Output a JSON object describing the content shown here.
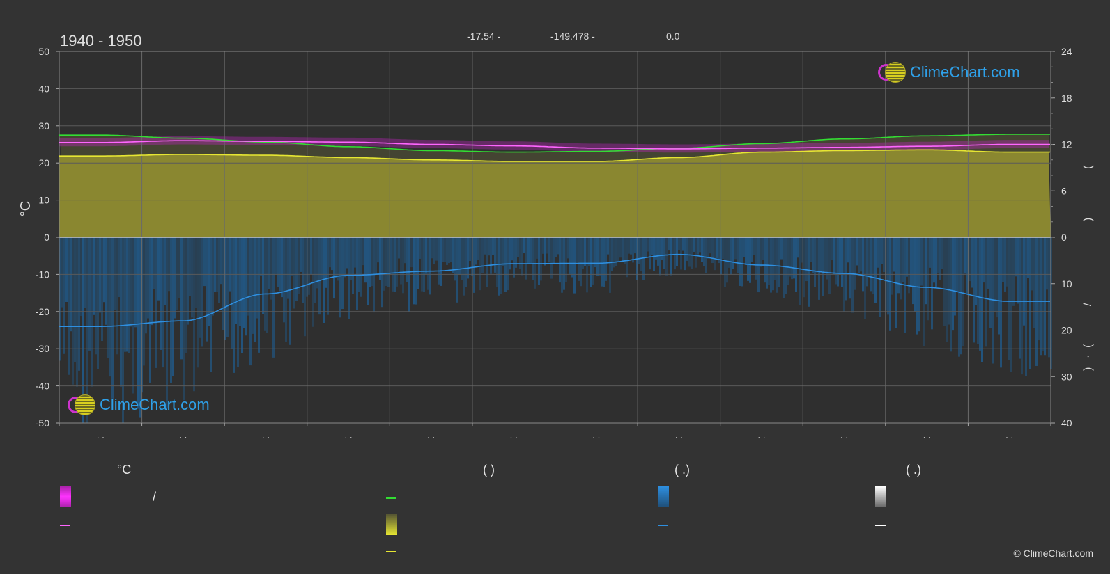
{
  "header": {
    "period": "1940 - 1950",
    "lat": "-17.54 -",
    "lon": "-149.478 -",
    "elev": "0.0"
  },
  "logo_text": "ClimeChart.com",
  "copyright": "© ClimeChart.com",
  "legend": {
    "col1_head": "°C",
    "col2_head": "(           )",
    "col3_head": "(   .)",
    "col4_head": "(   .)",
    "slash": "/"
  },
  "colors": {
    "background": "#333333",
    "sunshine_fill": "#8f8c30",
    "daylight_line": "#33dd33",
    "sunshine_line": "#e6e633",
    "temp_line": "#ff66ff",
    "temp_band": "#cc22cc",
    "precip_bars": "#1f5f94",
    "precip_line": "#2e8fe0",
    "snow_line": "#ffffff"
  },
  "chart_data": {
    "type": "line",
    "months": 12,
    "left_axis": {
      "label": "°C",
      "ticks": [
        50,
        40,
        30,
        20,
        10,
        0,
        -10,
        -20,
        -30,
        -40,
        -50
      ],
      "range": [
        -50,
        50
      ]
    },
    "right_axis_top": {
      "ticks": [
        24,
        18,
        12,
        6,
        0
      ],
      "range": [
        0,
        24
      ],
      "label_glyphs": [
        "(",
        ")"
      ]
    },
    "right_axis_bottom": {
      "ticks": [
        0,
        10,
        20,
        30,
        40
      ],
      "range": [
        0,
        40
      ],
      "label_glyphs": [
        "/",
        "(",
        "·",
        ")"
      ]
    },
    "x_tick_labels": [
      "· ·",
      "· ·",
      "· ·",
      "· ·",
      "· ·",
      "· ·",
      "· ·",
      "· ·",
      "· ·",
      "· ·",
      "· ·",
      "· ·"
    ],
    "series": [
      {
        "key": "daylight_hours",
        "unit": "h",
        "values": [
          13.2,
          12.8,
          12.3,
          11.7,
          11.2,
          11.0,
          11.1,
          11.5,
          12.1,
          12.7,
          13.1,
          13.3
        ]
      },
      {
        "key": "sunshine_hours",
        "unit": "h",
        "values": [
          10.5,
          10.7,
          10.6,
          10.3,
          10.0,
          9.8,
          9.8,
          10.3,
          11.0,
          11.2,
          11.3,
          11.0
        ]
      },
      {
        "key": "temp_mean",
        "unit": "°C",
        "values": [
          25.5,
          26.0,
          25.8,
          25.6,
          25.0,
          24.6,
          24.0,
          23.8,
          24.0,
          24.2,
          24.5,
          25.0
        ]
      },
      {
        "key": "precip_mm",
        "unit": "mm",
        "values": [
          19.2,
          18.0,
          12.2,
          8.2,
          7.3,
          5.7,
          5.6,
          3.7,
          6.0,
          7.8,
          10.8,
          13.8
        ]
      }
    ]
  }
}
